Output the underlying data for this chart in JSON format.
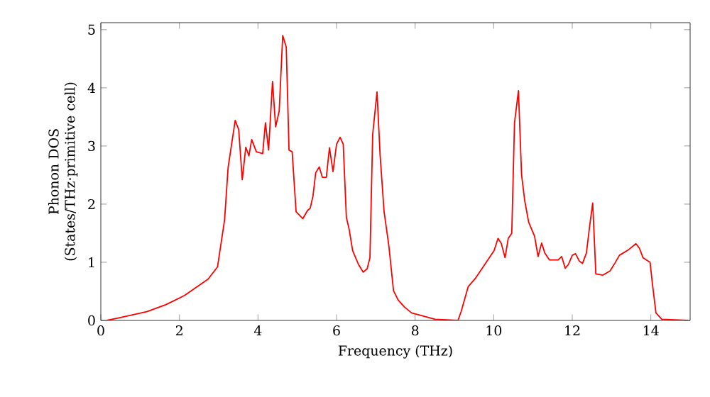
{
  "chart_data": {
    "type": "line",
    "xlabel": "Frequency (THz)",
    "ylabel": "Phonon DOS (States/THz·primitive cell)",
    "xlim": [
      0,
      15
    ],
    "ylim": [
      0,
      5.12
    ],
    "xticks": [
      0,
      2,
      4,
      6,
      8,
      10,
      12,
      14
    ],
    "yticks": [
      0,
      1,
      2,
      3,
      4,
      5
    ],
    "marker": "none",
    "line_style": "solid",
    "series": [
      {
        "color": "#ff0000",
        "x": [
          0.15,
          0.44,
          1.17,
          1.65,
          2.13,
          2.73,
          2.97,
          3.15,
          3.24,
          3.42,
          3.51,
          3.6,
          3.69,
          3.77,
          3.84,
          3.96,
          4.12,
          4.19,
          4.27,
          4.37,
          4.45,
          4.54,
          4.63,
          4.72,
          4.79,
          4.87,
          4.97,
          5.14,
          5.26,
          5.33,
          5.4,
          5.47,
          5.56,
          5.64,
          5.74,
          5.82,
          5.91,
          6.0,
          6.09,
          6.17,
          6.25,
          6.32,
          6.41,
          6.56,
          6.68,
          6.78,
          6.85,
          6.92,
          7.03,
          7.11,
          7.21,
          7.33,
          7.45,
          7.57,
          7.73,
          7.91,
          8.51,
          9.09,
          9.17,
          9.35,
          9.53,
          9.77,
          10.01,
          10.11,
          10.19,
          10.29,
          10.37,
          10.46,
          10.53,
          10.63,
          10.71,
          10.79,
          10.89,
          11.04,
          11.13,
          11.22,
          11.3,
          11.42,
          11.64,
          11.73,
          11.82,
          11.9,
          12.0,
          12.08,
          12.18,
          12.26,
          12.36,
          12.44,
          12.52,
          12.6,
          12.78,
          12.96,
          13.08,
          13.2,
          13.44,
          13.62,
          13.71,
          13.8,
          13.98,
          14.04,
          14.13,
          14.28,
          14.95
        ],
        "values": [
          0,
          0.04,
          0.15,
          0.27,
          0.43,
          0.71,
          0.92,
          1.73,
          2.63,
          3.44,
          3.28,
          2.42,
          2.98,
          2.83,
          3.11,
          2.9,
          2.87,
          3.4,
          2.93,
          4.11,
          3.33,
          3.6,
          4.9,
          4.7,
          2.93,
          2.9,
          1.87,
          1.75,
          1.89,
          1.93,
          2.14,
          2.54,
          2.64,
          2.46,
          2.46,
          2.97,
          2.56,
          3.03,
          3.15,
          3.03,
          1.77,
          1.57,
          1.2,
          0.96,
          0.83,
          0.89,
          1.08,
          3.2,
          3.93,
          2.83,
          1.87,
          1.29,
          0.51,
          0.35,
          0.23,
          0.13,
          0.02,
          0,
          0.15,
          0.58,
          0.72,
          0.96,
          1.2,
          1.41,
          1.33,
          1.08,
          1.41,
          1.5,
          3.4,
          3.95,
          2.5,
          2.06,
          1.69,
          1.45,
          1.1,
          1.33,
          1.16,
          1.04,
          1.04,
          1.1,
          0.9,
          0.96,
          1.12,
          1.15,
          1.02,
          0.98,
          1.16,
          1.61,
          2.02,
          0.8,
          0.78,
          0.85,
          0.98,
          1.12,
          1.22,
          1.32,
          1.24,
          1.08,
          1.0,
          0.63,
          0.13,
          0.02,
          0
        ]
      }
    ]
  }
}
